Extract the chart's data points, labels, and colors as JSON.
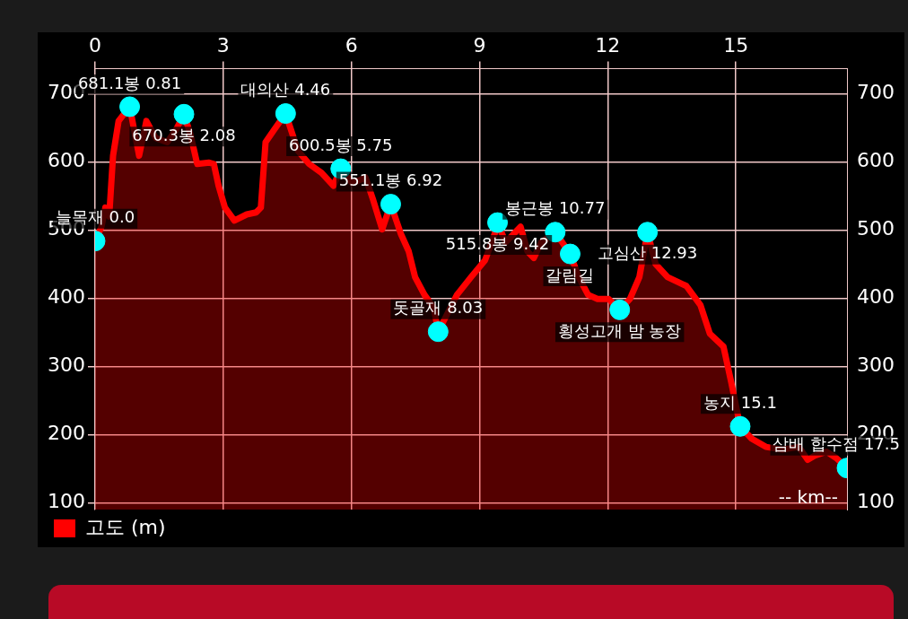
{
  "chart_data": {
    "type": "area",
    "xlabel": "-- km--",
    "xlim": [
      0,
      17.6
    ],
    "xticks": [
      0,
      3,
      6,
      9,
      12,
      15
    ],
    "ylim": [
      90,
      737
    ],
    "yticks": [
      100,
      200,
      300,
      400,
      500,
      600,
      700
    ],
    "y2lim": [
      90,
      737
    ],
    "y2ticks": [
      100,
      200,
      300,
      400,
      500,
      600,
      700
    ],
    "grid": true,
    "legend": "bottom left",
    "series": [
      {
        "name": "고도 (m)",
        "color": "#ff0000",
        "x": [
          0,
          0.15,
          0.24,
          0.33,
          0.42,
          0.55,
          0.81,
          1.03,
          1.2,
          1.42,
          1.69,
          1.9,
          2.08,
          2.23,
          2.39,
          2.67,
          2.78,
          2.89,
          3.04,
          3.26,
          3.55,
          3.77,
          3.88,
          3.99,
          4.2,
          4.46,
          4.75,
          5.01,
          5.3,
          5.58,
          5.75,
          6.02,
          6.33,
          6.5,
          6.72,
          6.92,
          7.16,
          7.34,
          7.49,
          7.71,
          7.93,
          8.03,
          8.21,
          8.47,
          8.8,
          9.13,
          9.35,
          9.42,
          9.61,
          9.79,
          9.96,
          10.12,
          10.27,
          10.44,
          10.77,
          11.12,
          11.32,
          11.54,
          11.76,
          12.02,
          12.28,
          12.52,
          12.74,
          12.93,
          13.12,
          13.4,
          13.84,
          14.17,
          14.39,
          14.71,
          14.89,
          15.1,
          15.37,
          15.7,
          16.09,
          16.47,
          16.68,
          16.84,
          17.12,
          17.34,
          17.6
        ],
        "values": [
          484,
          505,
          533,
          520,
          609,
          660,
          681,
          609,
          660,
          635,
          629,
          648,
          670,
          641,
          597,
          599,
          597,
          565,
          533,
          514,
          523,
          526,
          533,
          629,
          648,
          671,
          616,
          597,
          584,
          565,
          590,
          569,
          577,
          546,
          501,
          538,
          494,
          469,
          431,
          405,
          386,
          351,
          373,
          405,
          431,
          456,
          494,
          511,
          482,
          494,
          505,
          469,
          459,
          482,
          497,
          465,
          431,
          405,
          399,
          399,
          383,
          399,
          431,
          497,
          450,
          431,
          418,
          390,
          348,
          329,
          277,
          212,
          194,
          182,
          178,
          182,
          163,
          169,
          175,
          166,
          151
        ]
      },
      {
        "type": "scatter",
        "marker": "circle",
        "color": "#00ffff",
        "x": [
          0,
          0.81,
          2.08,
          4.46,
          5.75,
          6.92,
          8.03,
          9.42,
          10.77,
          11.12,
          12.28,
          12.93,
          15.1,
          17.6
        ],
        "values": [
          484,
          681,
          670,
          671,
          590,
          538,
          351,
          511,
          497,
          465,
          383,
          497,
          212,
          151
        ]
      }
    ],
    "annotations": [
      {
        "text": "늘목재 0.0",
        "x": 0,
        "y": 484
      },
      {
        "text": "681.1봉 0.81",
        "x": 0.81,
        "y": 681
      },
      {
        "text": "670.3봉 2.08",
        "x": 2.08,
        "y": 670
      },
      {
        "text": "대의산 4.46",
        "x": 4.46,
        "y": 671
      },
      {
        "text": "600.5봉 5.75",
        "x": 5.75,
        "y": 590
      },
      {
        "text": "551.1봉 6.92",
        "x": 6.92,
        "y": 538
      },
      {
        "text": "돗골재 8.03",
        "x": 8.03,
        "y": 351
      },
      {
        "text": "515.8봉 9.42",
        "x": 9.42,
        "y": 511
      },
      {
        "text": "봉근봉 10.77",
        "x": 10.77,
        "y": 497
      },
      {
        "text": "갈림길",
        "x": 11.12,
        "y": 465
      },
      {
        "text": "횡성고개 밤 농장",
        "x": 12.28,
        "y": 383
      },
      {
        "text": "고심산 12.93",
        "x": 12.93,
        "y": 497
      },
      {
        "text": "농지 15.1",
        "x": 15.1,
        "y": 212
      },
      {
        "text": "삼배 합수점 17.5",
        "x": 17.6,
        "y": 151
      }
    ]
  }
}
